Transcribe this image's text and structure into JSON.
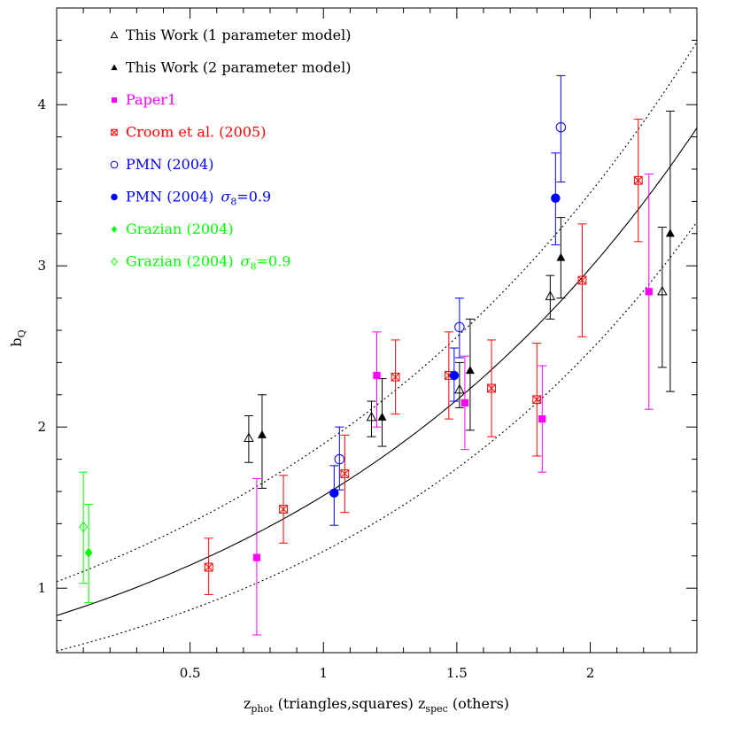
{
  "chart_data": {
    "type": "scatter",
    "title": "",
    "xlabel": {
      "main": "z",
      "sub1": "phot",
      "mid": " (triangles,squares) z",
      "sub2": "spec",
      "tail": " (others)"
    },
    "ylabel": {
      "main": "b",
      "sub": "Q"
    },
    "xlim": [
      0.0,
      2.4
    ],
    "ylim": [
      0.6,
      4.6
    ],
    "x_ticks": [
      0.5,
      1,
      1.5,
      2
    ],
    "x_tick_labels": [
      "0.5",
      "1",
      "1.5",
      "2"
    ],
    "y_ticks": [
      1,
      2,
      3,
      4
    ],
    "y_tick_labels": [
      "1",
      "2",
      "3",
      "4"
    ],
    "legend_position": "top-left",
    "series": [
      {
        "name": "This Work (1 parameter model)",
        "marker": "open-triangle",
        "color": "#000000",
        "points": [
          {
            "x": 0.72,
            "y": 1.93,
            "lo": 1.78,
            "hi": 2.07
          },
          {
            "x": 1.18,
            "y": 2.06,
            "lo": 1.94,
            "hi": 2.16
          },
          {
            "x": 1.51,
            "y": 2.23,
            "lo": 2.12,
            "hi": 2.4
          },
          {
            "x": 1.85,
            "y": 2.81,
            "lo": 2.67,
            "hi": 2.94
          },
          {
            "x": 2.27,
            "y": 2.84,
            "lo": 2.37,
            "hi": 3.24
          }
        ]
      },
      {
        "name": "This Work (2 parameter model)",
        "marker": "filled-triangle",
        "color": "#000000",
        "points": [
          {
            "x": 0.77,
            "y": 1.95,
            "lo": 1.62,
            "hi": 2.2
          },
          {
            "x": 1.22,
            "y": 2.06,
            "lo": 1.88,
            "hi": 2.3
          },
          {
            "x": 1.55,
            "y": 2.35,
            "lo": 1.98,
            "hi": 2.67
          },
          {
            "x": 1.89,
            "y": 3.05,
            "lo": 2.8,
            "hi": 3.3
          },
          {
            "x": 2.3,
            "y": 3.2,
            "lo": 2.22,
            "hi": 3.96
          }
        ]
      },
      {
        "name": "Paper1",
        "marker": "filled-square",
        "color": "#ff00ff",
        "points": [
          {
            "x": 0.75,
            "y": 1.19,
            "lo": 0.71,
            "hi": 1.68
          },
          {
            "x": 1.2,
            "y": 2.32,
            "lo": 2.0,
            "hi": 2.59
          },
          {
            "x": 1.53,
            "y": 2.15,
            "lo": 1.86,
            "hi": 2.44
          },
          {
            "x": 1.82,
            "y": 2.05,
            "lo": 1.72,
            "hi": 2.38
          },
          {
            "x": 2.22,
            "y": 2.84,
            "lo": 2.11,
            "hi": 3.57
          }
        ]
      },
      {
        "name": "Croom et al. (2005)",
        "marker": "star",
        "color": "#ff0000",
        "points": [
          {
            "x": 0.57,
            "y": 1.13,
            "lo": 0.96,
            "hi": 1.31
          },
          {
            "x": 0.85,
            "y": 1.49,
            "lo": 1.28,
            "hi": 1.7
          },
          {
            "x": 1.08,
            "y": 1.71,
            "lo": 1.47,
            "hi": 1.95
          },
          {
            "x": 1.27,
            "y": 2.31,
            "lo": 2.08,
            "hi": 2.54
          },
          {
            "x": 1.47,
            "y": 2.32,
            "lo": 2.05,
            "hi": 2.59
          },
          {
            "x": 1.63,
            "y": 2.24,
            "lo": 1.94,
            "hi": 2.54
          },
          {
            "x": 1.8,
            "y": 2.17,
            "lo": 1.82,
            "hi": 2.52
          },
          {
            "x": 1.97,
            "y": 2.91,
            "lo": 2.56,
            "hi": 3.26
          },
          {
            "x": 2.18,
            "y": 3.53,
            "lo": 3.15,
            "hi": 3.91
          }
        ]
      },
      {
        "name": "PMN (2004)",
        "marker": "open-circle",
        "color": "#0000ff",
        "points": [
          {
            "x": 1.06,
            "y": 1.8,
            "lo": 1.61,
            "hi": 2.0
          },
          {
            "x": 1.51,
            "y": 2.62,
            "lo": 2.43,
            "hi": 2.8
          },
          {
            "x": 1.89,
            "y": 3.86,
            "lo": 3.52,
            "hi": 4.18
          }
        ]
      },
      {
        "name": "PMN (2004) σ8=0.9",
        "marker": "filled-circle",
        "color": "#0000ff",
        "points": [
          {
            "x": 1.04,
            "y": 1.59,
            "lo": 1.39,
            "hi": 1.76
          },
          {
            "x": 1.49,
            "y": 2.32,
            "lo": 2.16,
            "hi": 2.49
          },
          {
            "x": 1.87,
            "y": 3.42,
            "lo": 3.13,
            "hi": 3.7
          }
        ]
      },
      {
        "name": "Grazian (2004)",
        "marker": "filled-diamond",
        "color": "#00ff00",
        "points": [
          {
            "x": 0.12,
            "y": 1.22,
            "lo": 0.91,
            "hi": 1.52
          }
        ]
      },
      {
        "name": "Grazian (2004) σ8=0.9",
        "marker": "open-diamond",
        "color": "#00ff00",
        "points": [
          {
            "x": 0.1,
            "y": 1.38,
            "lo": 1.03,
            "hi": 1.72
          }
        ]
      }
    ],
    "legend": [
      {
        "text": "This Work (1 parameter model)",
        "marker": "open-triangle",
        "color": "#000000"
      },
      {
        "text": "This Work (2 parameter model)",
        "marker": "filled-triangle",
        "color": "#000000"
      },
      {
        "text": "Paper1",
        "marker": "filled-square",
        "color": "#ff00ff"
      },
      {
        "text": "Croom et al. (2005)",
        "marker": "star",
        "color": "#ff0000"
      },
      {
        "text": "PMN (2004)",
        "marker": "open-circle",
        "color": "#0000ff"
      },
      {
        "text": "PMN (2004)",
        "sigma": "σ",
        "sigma_sub": "8",
        "sigma_val": "=0.9",
        "marker": "filled-circle",
        "color": "#0000ff"
      },
      {
        "text": "Grazian (2004)",
        "marker": "filled-diamond",
        "color": "#00ff00"
      },
      {
        "text": "Grazian (2004)",
        "sigma": "σ",
        "sigma_sub": "8",
        "sigma_val": "=0.9",
        "marker": "open-diamond",
        "color": "#00ff00"
      }
    ],
    "curves": [
      {
        "style": "solid",
        "color": "#000000",
        "form": "exponential",
        "a": 0.83,
        "b": 0.64
      },
      {
        "style": "dotted",
        "color": "#000000",
        "form": "exponential",
        "a": 1.04,
        "b": 0.6
      },
      {
        "style": "dotted",
        "color": "#000000",
        "form": "exponential",
        "a": 0.61,
        "b": 0.7
      }
    ]
  }
}
